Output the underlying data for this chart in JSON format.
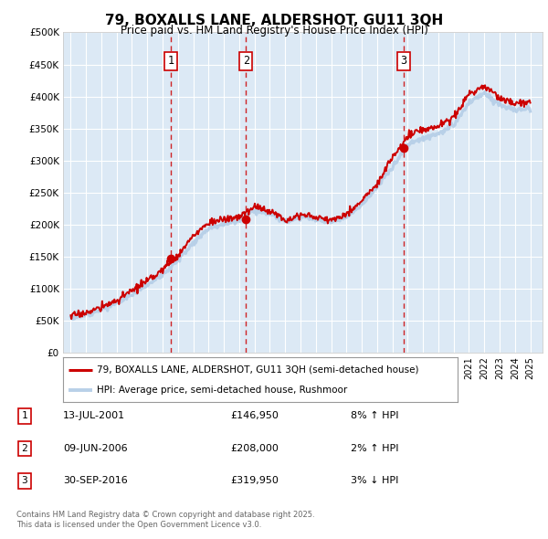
{
  "title": "79, BOXALLS LANE, ALDERSHOT, GU11 3QH",
  "subtitle": "Price paid vs. HM Land Registry's House Price Index (HPI)",
  "legend_line1": "79, BOXALLS LANE, ALDERSHOT, GU11 3QH (semi-detached house)",
  "legend_line2": "HPI: Average price, semi-detached house, Rushmoor",
  "sale1_date": "13-JUL-2001",
  "sale1_price": "£146,950",
  "sale1_hpi": "8% ↑ HPI",
  "sale1_year": 2001.54,
  "sale1_value": 146950,
  "sale2_date": "09-JUN-2006",
  "sale2_price": "£208,000",
  "sale2_hpi": "2% ↑ HPI",
  "sale2_year": 2006.44,
  "sale2_value": 208000,
  "sale3_date": "30-SEP-2016",
  "sale3_price": "£319,950",
  "sale3_hpi": "3% ↓ HPI",
  "sale3_year": 2016.75,
  "sale3_value": 319950,
  "footer_line1": "Contains HM Land Registry data © Crown copyright and database right 2025.",
  "footer_line2": "This data is licensed under the Open Government Licence v3.0.",
  "hpi_color": "#b8d0e8",
  "price_color": "#cc0000",
  "vline_color": "#cc0000",
  "plot_bg_color": "#dce9f5",
  "ylim_min": 0,
  "ylim_max": 500000,
  "xmin": 1994.5,
  "xmax": 2025.8
}
